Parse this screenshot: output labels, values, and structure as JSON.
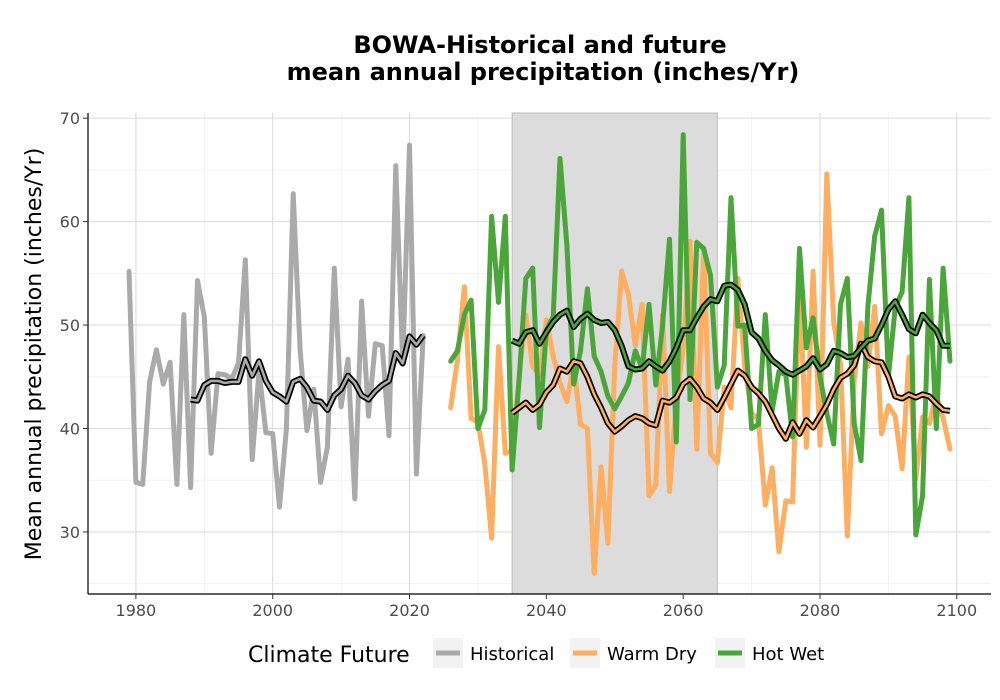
{
  "chart_data": {
    "type": "line",
    "title": [
      "BOWA-Historical and future",
      "mean annual precipitation (inches/Yr)"
    ],
    "xlabel": "",
    "ylabel": "Mean annual precipitation (inches/Yr)",
    "xlim": [
      1973,
      2105
    ],
    "ylim": [
      24,
      70.5
    ],
    "xticks": [
      1980,
      2000,
      2020,
      2040,
      2060,
      2080,
      2100
    ],
    "yticks": [
      30,
      40,
      50,
      60,
      70
    ],
    "grid": true,
    "shaded_period": [
      2035,
      2065
    ],
    "legend": {
      "title": "Climate Future",
      "position": "bottom"
    },
    "colors": {
      "Historical": "#aaaaaa",
      "Warm Dry": "#fdae61",
      "Hot Wet": "#4aa63a",
      "smooth_outline": "#000000",
      "shade": "#dcdcdc"
    },
    "series": [
      {
        "name": "Historical",
        "x": [
          1979,
          1980,
          1981,
          1982,
          1983,
          1984,
          1985,
          1986,
          1987,
          1988,
          1989,
          1990,
          1991,
          1992,
          1993,
          1994,
          1995,
          1996,
          1997,
          1998,
          1999,
          2000,
          2001,
          2002,
          2003,
          2004,
          2005,
          2006,
          2007,
          2008,
          2009,
          2010,
          2011,
          2012,
          2013,
          2014,
          2015,
          2016,
          2017,
          2018,
          2019,
          2020,
          2021,
          2022
        ],
        "values": [
          55.2,
          34.8,
          34.6,
          44.5,
          47.6,
          44.3,
          46.4,
          34.6,
          51.0,
          34.3,
          54.3,
          50.8,
          37.6,
          45.3,
          45.2,
          44.8,
          46.3,
          56.3,
          37.0,
          45.6,
          39.6,
          39.5,
          32.4,
          40.0,
          62.7,
          47.6,
          39.8,
          43.8,
          34.8,
          38.2,
          55.5,
          42.1,
          46.7,
          33.2,
          52.3,
          41.2,
          48.2,
          48.0,
          39.3,
          65.4,
          46.2,
          67.4,
          35.6,
          49.0
        ]
      },
      {
        "name": "Historical smooth",
        "x": [
          1988,
          1989,
          1990,
          1991,
          1992,
          1993,
          1994,
          1995,
          1996,
          1997,
          1998,
          1999,
          2000,
          2001,
          2002,
          2003,
          2004,
          2005,
          2006,
          2007,
          2008,
          2009,
          2010,
          2011,
          2012,
          2013,
          2014,
          2015,
          2016,
          2017,
          2018,
          2019,
          2020,
          2021,
          2022
        ],
        "values": [
          42.8,
          42.7,
          44.2,
          44.6,
          44.6,
          44.4,
          44.5,
          44.5,
          46.7,
          45.1,
          46.5,
          44.6,
          43.5,
          43.1,
          42.6,
          44.5,
          44.8,
          44.0,
          42.7,
          42.6,
          41.8,
          43.2,
          43.8,
          45.1,
          44.4,
          43.2,
          42.8,
          43.6,
          44.2,
          44.6,
          47.3,
          46.3,
          48.9,
          48.1,
          49.0
        ]
      },
      {
        "name": "Warm Dry",
        "x": [
          2026,
          2027,
          2028,
          2029,
          2030,
          2031,
          2032,
          2033,
          2034,
          2035,
          2036,
          2037,
          2038,
          2039,
          2040,
          2041,
          2042,
          2043,
          2044,
          2045,
          2046,
          2047,
          2048,
          2049,
          2050,
          2051,
          2052,
          2053,
          2054,
          2055,
          2056,
          2057,
          2058,
          2059,
          2060,
          2061,
          2062,
          2063,
          2064,
          2065,
          2066,
          2067,
          2068,
          2069,
          2070,
          2071,
          2072,
          2073,
          2074,
          2075,
          2076,
          2077,
          2078,
          2079,
          2080,
          2081,
          2082,
          2083,
          2084,
          2085,
          2086,
          2087,
          2088,
          2089,
          2090,
          2091,
          2092,
          2093,
          2094,
          2095,
          2096,
          2097,
          2098,
          2099
        ],
        "values": [
          42.0,
          46.6,
          53.7,
          41.0,
          40.6,
          36.6,
          29.4,
          47.9,
          37.6,
          37.9,
          44.8,
          51.0,
          46.0,
          45.1,
          50.5,
          47.0,
          44.4,
          42.6,
          46.2,
          40.4,
          40.0,
          26.0,
          36.3,
          28.9,
          46.1,
          55.2,
          53.0,
          48.0,
          52.0,
          33.5,
          34.5,
          51.0,
          33.9,
          42.8,
          47.7,
          58.1,
          38.0,
          57.3,
          37.6,
          36.7,
          44.0,
          42.0,
          54.5,
          46.0,
          41.5,
          40.8,
          32.6,
          36.2,
          28.1,
          33.0,
          32.9,
          54.0,
          38.2,
          55.2,
          38.4,
          64.6,
          50.3,
          46.2,
          29.6,
          44.7,
          50.2,
          46.0,
          51.8,
          39.5,
          42.2,
          41.2,
          36.1,
          46.9,
          35.1,
          41.1,
          40.5,
          43.3,
          41.0,
          38.0
        ]
      },
      {
        "name": "Hot Wet",
        "x": [
          2026,
          2027,
          2028,
          2029,
          2030,
          2031,
          2032,
          2033,
          2034,
          2035,
          2036,
          2037,
          2038,
          2039,
          2040,
          2041,
          2042,
          2043,
          2044,
          2045,
          2046,
          2047,
          2048,
          2049,
          2050,
          2051,
          2052,
          2053,
          2054,
          2055,
          2056,
          2057,
          2058,
          2059,
          2060,
          2061,
          2062,
          2063,
          2064,
          2065,
          2066,
          2067,
          2068,
          2069,
          2070,
          2071,
          2072,
          2073,
          2074,
          2075,
          2076,
          2077,
          2078,
          2079,
          2080,
          2081,
          2082,
          2083,
          2084,
          2085,
          2086,
          2087,
          2088,
          2089,
          2090,
          2091,
          2092,
          2093,
          2094,
          2095,
          2096,
          2097,
          2098,
          2099
        ],
        "values": [
          46.5,
          47.5,
          51.0,
          52.4,
          40.0,
          41.8,
          60.5,
          52.2,
          60.5,
          36.0,
          44.6,
          54.5,
          55.5,
          40.1,
          49.5,
          50.8,
          66.1,
          57.7,
          44.3,
          47.5,
          53.5,
          47.0,
          45.5,
          43.1,
          41.9,
          43.1,
          44.4,
          47.5,
          45.8,
          52.0,
          44.2,
          50.0,
          58.3,
          38.7,
          68.4,
          42.8,
          58.0,
          57.4,
          54.8,
          44.0,
          46.1,
          62.3,
          49.9,
          50.0,
          40.0,
          40.4,
          51.0,
          41.7,
          45.5,
          45.2,
          39.2,
          57.4,
          47.8,
          50.7,
          45.0,
          41.5,
          38.5,
          52.0,
          54.5,
          40.5,
          36.9,
          51.8,
          58.6,
          61.1,
          45.0,
          51.7,
          53.2,
          62.3,
          29.7,
          33.5,
          54.4,
          40.0,
          55.5,
          46.5
        ]
      },
      {
        "name": "Warm Dry smooth",
        "x": [
          2035,
          2036,
          2037,
          2038,
          2039,
          2040,
          2041,
          2042,
          2043,
          2044,
          2045,
          2046,
          2047,
          2048,
          2049,
          2050,
          2051,
          2052,
          2053,
          2054,
          2055,
          2056,
          2057,
          2058,
          2059,
          2060,
          2061,
          2062,
          2063,
          2064,
          2065,
          2066,
          2067,
          2068,
          2069,
          2070,
          2071,
          2072,
          2073,
          2074,
          2075,
          2076,
          2077,
          2078,
          2079,
          2080,
          2081,
          2082,
          2083,
          2084,
          2085,
          2086,
          2087,
          2088,
          2089,
          2090,
          2091,
          2092,
          2093,
          2094,
          2095,
          2096,
          2097,
          2098,
          2099
        ],
        "values": [
          41.5,
          42.0,
          42.5,
          41.8,
          42.3,
          43.5,
          44.2,
          45.8,
          45.5,
          46.5,
          46.3,
          45.0,
          43.3,
          42.0,
          40.5,
          39.7,
          40.2,
          40.8,
          41.2,
          41.0,
          40.5,
          40.3,
          42.7,
          42.5,
          43.0,
          44.3,
          44.8,
          44.0,
          42.9,
          42.5,
          41.8,
          43.0,
          44.3,
          45.6,
          45.1,
          44.0,
          43.4,
          42.6,
          41.3,
          40.0,
          39.0,
          40.6,
          39.5,
          40.8,
          40.1,
          41.2,
          42.3,
          43.8,
          44.9,
          45.3,
          46.1,
          48.2,
          46.9,
          46.5,
          46.4,
          45.0,
          43.1,
          42.9,
          43.3,
          43.0,
          43.3,
          43.1,
          42.4,
          41.8,
          41.7
        ]
      },
      {
        "name": "Hot Wet smooth",
        "x": [
          2035,
          2036,
          2037,
          2038,
          2039,
          2040,
          2041,
          2042,
          2043,
          2044,
          2045,
          2046,
          2047,
          2048,
          2049,
          2050,
          2051,
          2052,
          2053,
          2054,
          2055,
          2056,
          2057,
          2058,
          2059,
          2060,
          2061,
          2062,
          2063,
          2064,
          2065,
          2066,
          2067,
          2068,
          2069,
          2070,
          2071,
          2072,
          2073,
          2074,
          2075,
          2076,
          2077,
          2078,
          2079,
          2080,
          2081,
          2082,
          2083,
          2084,
          2085,
          2086,
          2087,
          2088,
          2089,
          2090,
          2091,
          2092,
          2093,
          2094,
          2095,
          2096,
          2097,
          2098,
          2099
        ],
        "values": [
          48.5,
          48.2,
          49.3,
          49.5,
          48.2,
          49.3,
          50.3,
          51.0,
          51.4,
          49.8,
          50.6,
          51.1,
          50.5,
          50.2,
          50.3,
          49.5,
          48.0,
          46.0,
          45.7,
          45.8,
          46.5,
          46.0,
          45.6,
          46.5,
          47.8,
          49.5,
          49.5,
          50.7,
          51.8,
          52.5,
          52.3,
          53.8,
          53.9,
          53.4,
          52.0,
          49.3,
          48.7,
          47.5,
          46.6,
          46.1,
          45.5,
          45.2,
          45.6,
          46.0,
          46.8,
          45.7,
          46.2,
          47.5,
          47.3,
          46.9,
          47.0,
          47.8,
          48.5,
          48.7,
          50.0,
          51.5,
          52.3,
          51.0,
          49.6,
          49.2,
          51.0,
          50.2,
          49.5,
          48.0,
          48.0
        ]
      }
    ]
  }
}
